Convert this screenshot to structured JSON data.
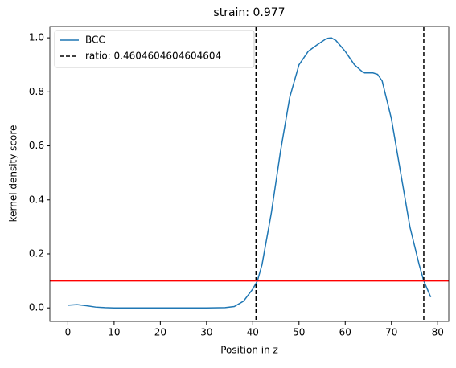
{
  "chart_data": {
    "type": "line",
    "title": "strain: 0.977",
    "x_label": "Position in z",
    "y_label": "kernel density score",
    "xlim": [
      -3.9,
      82.4
    ],
    "ylim": [
      -0.05,
      1.042
    ],
    "xticks": [
      0,
      10,
      20,
      30,
      40,
      50,
      60,
      70,
      80
    ],
    "yticks": [
      {
        "value": 0,
        "label": "0.0"
      },
      {
        "value": 0.2,
        "label": "0.2"
      },
      {
        "value": 0.4,
        "label": "0.4"
      },
      {
        "value": 0.6,
        "label": "0.6"
      },
      {
        "value": 0.8,
        "label": "0.8"
      },
      {
        "value": 1,
        "label": "1.0"
      }
    ],
    "series": [
      {
        "name": "BCC",
        "color": "#1f77b4",
        "x": [
          0,
          2,
          4,
          6,
          8,
          10,
          15,
          20,
          25,
          30,
          34,
          36,
          38,
          40,
          41,
          42,
          44,
          46,
          48,
          50,
          52,
          54,
          56,
          57,
          58,
          60,
          62,
          64,
          66,
          67,
          68,
          70,
          72,
          74,
          76,
          77,
          78,
          78.5
        ],
        "values": [
          0.01,
          0.012,
          0.008,
          0.003,
          0.001,
          0,
          0,
          0,
          0,
          0,
          0.001,
          0.005,
          0.025,
          0.07,
          0.1,
          0.16,
          0.35,
          0.58,
          0.78,
          0.9,
          0.95,
          0.975,
          0.998,
          1.0,
          0.99,
          0.95,
          0.9,
          0.87,
          0.87,
          0.865,
          0.84,
          0.7,
          0.5,
          0.3,
          0.16,
          0.1,
          0.06,
          0.04
        ]
      }
    ],
    "vlines": {
      "name": "ratio: 0.4604604604604604",
      "color": "#000000",
      "values": [
        40.7,
        77.0
      ]
    },
    "hline": {
      "value": 0.1,
      "color": "#ff0000"
    },
    "legend": "upper left"
  }
}
